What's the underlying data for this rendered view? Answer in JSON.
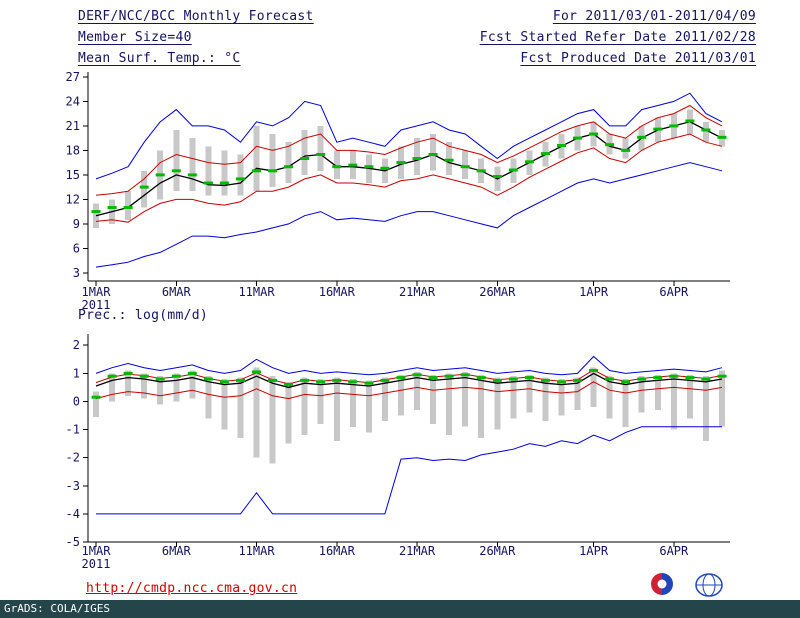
{
  "header": {
    "title_left": "DERF/NCC/BCC Monthly Forecast",
    "member_size": "Member Size=40",
    "for_range": "For 2011/03/01-2011/04/09",
    "fcst_start": "Fcst Started Refer Date 2011/02/28",
    "fcst_produced": "Fcst Produced Date 2011/03/01"
  },
  "footer": {
    "link": "http://cmdp.ncc.cma.gov.cn",
    "grads_credit": "GrADS: COLA/IGES",
    "bcc_label": "BCC",
    "ncc_label": "NCC"
  },
  "colors": {
    "ink": "#14145f",
    "link": "#d40000",
    "footer_bg": "#24454a",
    "footer_text": "#ffffff",
    "bar": "#c8c8c8",
    "marker": "#00b800",
    "blue_line": "#0000dd",
    "red_line": "#cc0000",
    "black_line": "#000000",
    "logo_blue": "#2244bb",
    "logo_red": "#cc2233"
  },
  "chart_data": [
    {
      "type": "line",
      "title": "Mean Surf. Temp.: °C",
      "n_days": 40,
      "x_tick_labels": [
        "1MAR",
        "6MAR",
        "11MAR",
        "16MAR",
        "21MAR",
        "26MAR",
        "1APR",
        "6APR"
      ],
      "x_tick_positions": [
        0,
        5,
        10,
        15,
        20,
        25,
        31,
        36
      ],
      "x_sub_label": "2011",
      "ylim": [
        2,
        27.6
      ],
      "yticks": [
        3,
        6,
        9,
        12,
        15,
        18,
        21,
        24,
        27
      ],
      "grid": false,
      "legend": "none",
      "series": [
        {
          "name": "max",
          "color": "#0000dd",
          "values": [
            14.5,
            15.2,
            16,
            19,
            21.5,
            23,
            21,
            21,
            20.5,
            19,
            21.5,
            21,
            22,
            24,
            23.5,
            19,
            19.5,
            19,
            18.5,
            20.5,
            21,
            21.5,
            20.5,
            20,
            18.5,
            17,
            18.5,
            19.5,
            20.5,
            21.5,
            22.5,
            23,
            21,
            21,
            23,
            23.5,
            24,
            25,
            22.5,
            21.5
          ]
        },
        {
          "name": "plus-spread",
          "color": "#cc0000",
          "values": [
            12.5,
            12.7,
            13,
            14.5,
            16.5,
            17.5,
            17,
            16.5,
            16.3,
            16.5,
            18.5,
            18,
            18.5,
            19.5,
            20,
            18,
            18,
            17.8,
            17.5,
            18.3,
            19,
            19.5,
            18.5,
            18,
            17.5,
            16.5,
            17.3,
            18.3,
            19.3,
            20.3,
            21,
            21.5,
            20,
            19.5,
            21,
            22,
            22.5,
            23.5,
            22,
            21
          ]
        },
        {
          "name": "mean",
          "color": "#000000",
          "values": [
            10,
            10.5,
            11,
            12.5,
            14,
            15,
            14.5,
            13.8,
            13.7,
            14,
            15.8,
            15.5,
            16,
            17.3,
            17.5,
            16,
            16,
            15.8,
            15.5,
            16.3,
            16.8,
            17.5,
            16.5,
            16,
            15.5,
            14.5,
            15.5,
            16.5,
            17.5,
            18.5,
            19.5,
            20,
            18.5,
            18,
            19.5,
            20.5,
            21,
            21.5,
            20.5,
            19.5
          ]
        },
        {
          "name": "minus-spread",
          "color": "#cc0000",
          "values": [
            9.3,
            9.5,
            9.2,
            10.5,
            11.5,
            12,
            12,
            11.5,
            11.3,
            11.7,
            13,
            13,
            13.5,
            14.5,
            15,
            14,
            14,
            13.8,
            13.5,
            14.3,
            14.5,
            15,
            14.5,
            14,
            13.5,
            12.5,
            13.5,
            14.7,
            15.7,
            16.7,
            17.7,
            18.3,
            17,
            16.5,
            18,
            19,
            19.5,
            20,
            19,
            18.5
          ]
        },
        {
          "name": "min",
          "color": "#0000dd",
          "values": [
            3.7,
            4,
            4.3,
            5,
            5.5,
            6.5,
            7.5,
            7.5,
            7.3,
            7.7,
            8,
            8.5,
            9,
            10,
            10.5,
            9.5,
            9.7,
            9.5,
            9.3,
            10,
            10.5,
            10.5,
            10,
            9.5,
            9,
            8.5,
            10,
            11,
            12,
            13,
            14,
            14.5,
            14,
            14.5,
            15,
            15.5,
            16,
            16.5,
            16,
            15.5
          ]
        }
      ],
      "markers": {
        "name": "daily-marker",
        "color": "#00b800",
        "values": [
          10.5,
          11,
          11,
          13.5,
          15,
          15.5,
          15,
          14,
          14,
          14.5,
          15.5,
          15.5,
          16,
          17,
          17.5,
          16,
          16.2,
          16,
          15.8,
          16.5,
          17,
          17.5,
          16.8,
          16,
          15.5,
          14.8,
          15.6,
          16.6,
          17.6,
          18.6,
          19.5,
          20,
          18.7,
          18,
          19.6,
          20.6,
          21,
          21.6,
          20.5,
          19.6
        ]
      },
      "bars": {
        "name": "ensemble-spread-bar",
        "color": "#c8c8c8",
        "low": [
          8.5,
          9,
          9.5,
          11,
          12,
          13,
          13,
          12.5,
          12.5,
          12.5,
          13,
          13.5,
          14,
          15,
          15.5,
          14.5,
          14.5,
          14,
          14,
          14.5,
          15,
          15.5,
          15,
          14.5,
          14,
          13,
          14,
          15,
          16,
          17,
          18,
          18.5,
          17.5,
          17,
          18,
          19,
          19.5,
          20,
          19,
          18.5
        ],
        "high": [
          11.5,
          12,
          13,
          15.5,
          18,
          20.5,
          19.5,
          18.5,
          18,
          17.5,
          21,
          20,
          19,
          20.5,
          21,
          18,
          18,
          17.5,
          17,
          18.5,
          19.5,
          20,
          19,
          18,
          17,
          16,
          17,
          18,
          19,
          20,
          21,
          21.5,
          20,
          19.5,
          21,
          22,
          22.5,
          23,
          21.5,
          20.5
        ]
      }
    },
    {
      "type": "line",
      "title": "Prec.: log(mm/d)",
      "n_days": 40,
      "x_tick_labels": [
        "1MAR",
        "6MAR",
        "11MAR",
        "16MAR",
        "21MAR",
        "26MAR",
        "1APR",
        "6APR"
      ],
      "x_tick_positions": [
        0,
        5,
        10,
        15,
        20,
        25,
        31,
        36
      ],
      "x_sub_label": "2011",
      "ylim": [
        -5,
        2.4
      ],
      "yticks": [
        -5,
        -4,
        -3,
        -2,
        -1,
        0,
        1,
        2
      ],
      "grid": false,
      "legend": "none",
      "series": [
        {
          "name": "max",
          "color": "#0000dd",
          "values": [
            1.0,
            1.2,
            1.35,
            1.2,
            1.1,
            1.2,
            1.3,
            1.1,
            1.0,
            1.1,
            1.5,
            1.2,
            1.0,
            1.1,
            1.0,
            1.05,
            1.0,
            0.95,
            1.0,
            1.1,
            1.2,
            1.1,
            1.15,
            1.2,
            1.1,
            1.0,
            1.05,
            1.1,
            1.0,
            0.95,
            1.0,
            1.6,
            1.1,
            1.0,
            1.05,
            1.1,
            1.15,
            1.1,
            1.05,
            1.2
          ]
        },
        {
          "name": "plus-spread",
          "color": "#cc0000",
          "values": [
            0.67,
            0.87,
            0.97,
            0.92,
            0.82,
            0.87,
            0.97,
            0.82,
            0.72,
            0.77,
            1.02,
            0.77,
            0.62,
            0.77,
            0.72,
            0.77,
            0.72,
            0.67,
            0.77,
            0.87,
            0.97,
            0.87,
            0.92,
            0.97,
            0.87,
            0.77,
            0.82,
            0.87,
            0.77,
            0.72,
            0.77,
            1.12,
            0.82,
            0.72,
            0.82,
            0.87,
            0.92,
            0.87,
            0.82,
            0.92
          ]
        },
        {
          "name": "mean",
          "color": "#000000",
          "values": [
            0.55,
            0.75,
            0.85,
            0.8,
            0.7,
            0.75,
            0.85,
            0.7,
            0.6,
            0.65,
            0.9,
            0.65,
            0.5,
            0.65,
            0.6,
            0.65,
            0.6,
            0.55,
            0.65,
            0.75,
            0.85,
            0.75,
            0.8,
            0.85,
            0.75,
            0.65,
            0.7,
            0.75,
            0.65,
            0.6,
            0.65,
            1.0,
            0.7,
            0.6,
            0.7,
            0.75,
            0.8,
            0.75,
            0.7,
            0.8
          ]
        },
        {
          "name": "minus-spread",
          "color": "#cc0000",
          "values": [
            0.1,
            0.25,
            0.35,
            0.3,
            0.2,
            0.3,
            0.4,
            0.25,
            0.15,
            0.2,
            0.45,
            0.2,
            0.1,
            0.25,
            0.2,
            0.3,
            0.25,
            0.2,
            0.3,
            0.4,
            0.5,
            0.4,
            0.45,
            0.5,
            0.45,
            0.35,
            0.4,
            0.45,
            0.35,
            0.3,
            0.35,
            0.7,
            0.4,
            0.3,
            0.4,
            0.45,
            0.5,
            0.45,
            0.4,
            0.5
          ]
        },
        {
          "name": "min",
          "color": "#0000dd",
          "values": [
            -4,
            -4,
            -4,
            -4,
            -4,
            -4,
            -4,
            -4,
            -4,
            -4,
            -3.25,
            -4,
            -4,
            -4,
            -4,
            -4,
            -4,
            -4,
            -4,
            -2.05,
            -2.0,
            -2.1,
            -2.05,
            -2.1,
            -1.9,
            -1.8,
            -1.7,
            -1.5,
            -1.6,
            -1.4,
            -1.5,
            -1.2,
            -1.4,
            -1.1,
            -0.9,
            -0.9,
            -0.9,
            -0.9,
            -0.9,
            -0.9
          ]
        }
      ],
      "markers": {
        "name": "daily-marker",
        "color": "#00b800",
        "values": [
          0.15,
          0.9,
          1.0,
          0.9,
          0.8,
          0.9,
          1.0,
          0.8,
          0.7,
          0.75,
          1.05,
          0.75,
          0.6,
          0.75,
          0.7,
          0.75,
          0.7,
          0.65,
          0.75,
          0.85,
          0.95,
          0.85,
          0.9,
          0.95,
          0.85,
          0.75,
          0.8,
          0.85,
          0.75,
          0.7,
          0.75,
          1.1,
          0.8,
          0.7,
          0.8,
          0.85,
          0.9,
          0.85,
          0.8,
          0.9
        ]
      },
      "bars": {
        "name": "ensemble-spread-bar",
        "color": "#c8c8c8",
        "low": [
          -0.55,
          0.0,
          0.2,
          0.1,
          -0.1,
          0.0,
          0.1,
          -0.6,
          -1.0,
          -1.3,
          -2.0,
          -2.2,
          -1.5,
          -1.2,
          -0.8,
          -1.4,
          -0.9,
          -1.1,
          -0.7,
          -0.5,
          -0.3,
          -0.8,
          -1.2,
          -0.9,
          -1.3,
          -1.0,
          -0.6,
          -0.4,
          -0.7,
          -0.5,
          -0.3,
          -0.2,
          -0.6,
          -0.9,
          -0.4,
          -0.3,
          -1.0,
          -0.6,
          -1.4,
          -0.9
        ],
        "high": [
          0.35,
          1.0,
          1.1,
          1.0,
          0.9,
          1.0,
          1.1,
          0.9,
          0.8,
          0.85,
          1.2,
          0.9,
          0.7,
          0.85,
          0.8,
          0.85,
          0.8,
          0.75,
          0.85,
          0.95,
          1.05,
          0.95,
          1.0,
          1.05,
          0.95,
          0.85,
          0.9,
          0.95,
          0.85,
          0.8,
          0.85,
          1.2,
          0.9,
          0.8,
          0.9,
          0.95,
          1.0,
          0.95,
          0.9,
          1.1
        ]
      }
    }
  ]
}
